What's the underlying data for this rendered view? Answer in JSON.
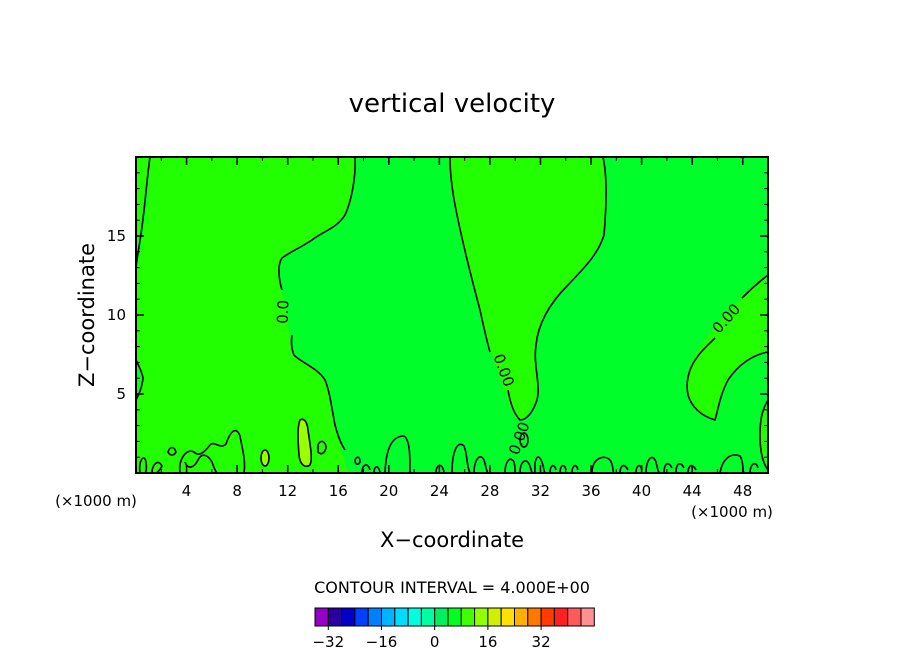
{
  "chart_data": {
    "type": "contour",
    "title": "vertical velocity",
    "xlabel": "X−coordinate",
    "ylabel": "Z−coordinate",
    "x_unit_left": "(×1000 m)",
    "x_unit_right": "(×1000 m)",
    "xlim": [
      0,
      50
    ],
    "ylim": [
      0,
      20
    ],
    "x_ticks": [
      4,
      8,
      12,
      16,
      20,
      24,
      28,
      32,
      36,
      40,
      44,
      48
    ],
    "y_ticks": [
      5,
      10,
      15
    ],
    "contour_labels": [
      "0.0",
      "0.00",
      "0.00",
      "0.00"
    ],
    "contour_interval": "CONTOUR INTERVAL = 4.000E+00",
    "colorbar": {
      "ticks": [
        "−32",
        "−16",
        "0",
        "16",
        "32"
      ],
      "tick_values": [
        -32,
        -16,
        0,
        16,
        32
      ],
      "levels_min": -36,
      "level_step": 4,
      "colors": [
        "#9400c8",
        "#2a00a0",
        "#0000c8",
        "#0040ff",
        "#0080ff",
        "#00b4ff",
        "#00dcff",
        "#00ffe0",
        "#00ffa0",
        "#00f060",
        "#00ff20",
        "#40ff00",
        "#90ff00",
        "#d0f000",
        "#ffe000",
        "#ffb000",
        "#ff7800",
        "#ff3c00",
        "#ff2020",
        "#ff5a5a",
        "#ff9090"
      ]
    },
    "fill_colors": {
      "positive": "#22ff00",
      "negative": "#00ff2a",
      "weak_positive": "#9aff00"
    }
  }
}
